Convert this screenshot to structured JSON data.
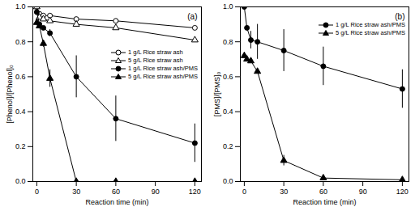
{
  "chart_data": [
    {
      "type": "line",
      "title": "(a)",
      "x_label": "Reaction time (min)",
      "y_label": "[Phenol]/[Phenol]₀",
      "x": [
        0,
        2,
        5,
        10,
        30,
        60,
        120
      ],
      "xlim": [
        -3,
        125
      ],
      "xticks": [
        0,
        30,
        60,
        90,
        120
      ],
      "ylim": [
        0,
        1
      ],
      "yticks": [
        {
          "value": 0,
          "label": "0.0"
        },
        {
          "value": 0.2,
          "label": "0.2"
        },
        {
          "value": 0.4,
          "label": "0.4"
        },
        {
          "value": 0.6,
          "label": "0.6"
        },
        {
          "value": 0.8,
          "label": "0.8"
        },
        {
          "value": 1,
          "label": "1.0"
        }
      ],
      "legend": "center right",
      "series": [
        {
          "name": "1 g/L Rice straw ash",
          "color": "#000000",
          "marker": "circle-open",
          "line_style": "solid",
          "values": [
            1.0,
            0.96,
            0.95,
            0.95,
            0.93,
            0.92,
            0.88
          ]
        },
        {
          "name": "5 g/L Rice straw ash",
          "color": "#000000",
          "marker": "triangle-open",
          "line_style": "solid",
          "values": [
            1.0,
            0.94,
            0.93,
            0.92,
            0.9,
            0.88,
            0.81
          ]
        },
        {
          "name": "1 g/L Rice straw ash/PMS",
          "color": "#000000",
          "marker": "circle",
          "line_style": "solid",
          "values": [
            0.97,
            0.9,
            0.88,
            0.85,
            0.6,
            0.36,
            0.22
          ],
          "errors": [
            null,
            null,
            null,
            0.02,
            0.12,
            0.13,
            0.11
          ]
        },
        {
          "name": "5 g/L Rice straw ash/PMS",
          "color": "#000000",
          "marker": "triangle",
          "line_style": "solid",
          "values": [
            0.91,
            0.89,
            0.79,
            0.59,
            0.0,
            0.0,
            0.0
          ],
          "errors": [
            null,
            null,
            0.02,
            0.05,
            null,
            null,
            null
          ]
        }
      ]
    },
    {
      "type": "line",
      "title": "(b)",
      "x_label": "Reaction time (min)",
      "y_label": "[PMS]/[PMS]₀",
      "x": [
        0,
        2,
        5,
        10,
        30,
        60,
        120
      ],
      "xlim": [
        -3,
        125
      ],
      "xticks": [
        0,
        30,
        60,
        90,
        120
      ],
      "ylim": [
        0,
        1
      ],
      "yticks": [
        {
          "value": 0,
          "label": "0.0"
        },
        {
          "value": 0.2,
          "label": "0.2"
        },
        {
          "value": 0.4,
          "label": "0.4"
        },
        {
          "value": 0.6,
          "label": "0.6"
        },
        {
          "value": 0.8,
          "label": "0.8"
        },
        {
          "value": 1,
          "label": "1.0"
        }
      ],
      "legend": "upper right",
      "series": [
        {
          "name": "1 g/L Rice straw ash/PMS",
          "color": "#000000",
          "marker": "circle",
          "line_style": "solid",
          "values": [
            1.0,
            0.88,
            0.81,
            0.8,
            0.75,
            0.66,
            0.53
          ],
          "errors": [
            null,
            null,
            0.05,
            0.1,
            0.12,
            0.11,
            0.11
          ]
        },
        {
          "name": "5 g/L Rice straw ash/PMS",
          "color": "#000000",
          "marker": "triangle",
          "line_style": "solid",
          "values": [
            0.72,
            0.7,
            0.69,
            0.63,
            0.12,
            0.02,
            0.01
          ],
          "errors": [
            null,
            null,
            null,
            null,
            0.03,
            null,
            null
          ]
        }
      ]
    }
  ]
}
